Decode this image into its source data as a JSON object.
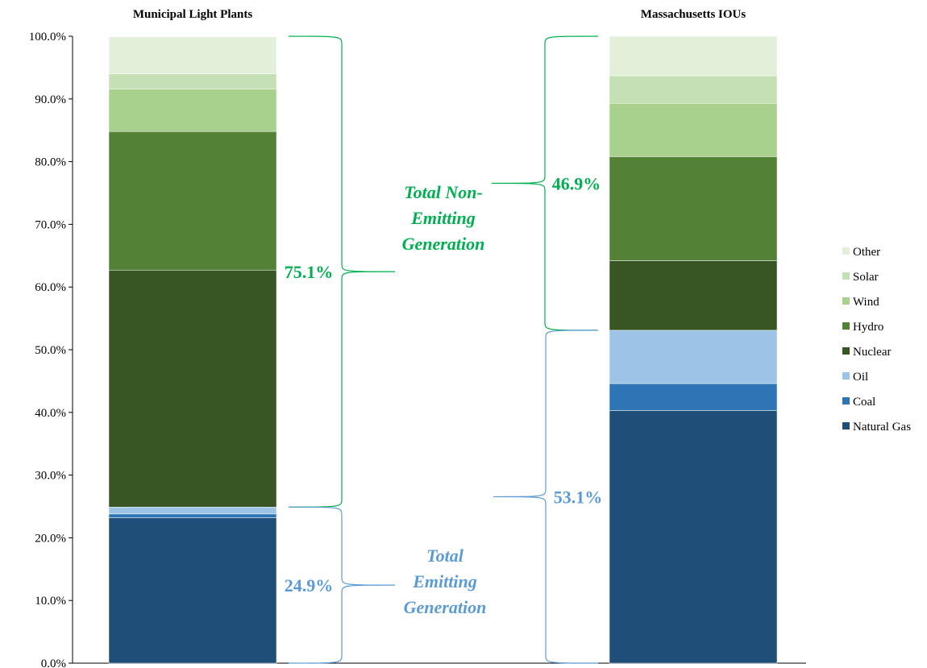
{
  "chart_data": {
    "type": "bar",
    "stacked": true,
    "categories": [
      "Municipal Light Plants",
      "Massachusetts IOUs"
    ],
    "series": [
      {
        "name": "Natural Gas",
        "color": "#1f4e79",
        "values": [
          23.2,
          40.3
        ]
      },
      {
        "name": "Coal",
        "color": "#2e75b6",
        "values": [
          0.6,
          4.3
        ]
      },
      {
        "name": "Oil",
        "color": "#9dc3e6",
        "values": [
          1.1,
          8.5
        ]
      },
      {
        "name": "Nuclear",
        "color": "#375623",
        "values": [
          37.8,
          11.1
        ]
      },
      {
        "name": "Hydro",
        "color": "#538135",
        "values": [
          22.1,
          16.6
        ]
      },
      {
        "name": "Wind",
        "color": "#a9d18e",
        "values": [
          6.8,
          8.5
        ]
      },
      {
        "name": "Solar",
        "color": "#c5e0b4",
        "values": [
          2.4,
          4.4
        ]
      },
      {
        "name": "Other",
        "color": "#e2f0d9",
        "values": [
          5.9,
          6.3
        ]
      }
    ],
    "ylim": [
      0,
      100
    ],
    "yticks": [
      "0.0%",
      "10.0%",
      "20.0%",
      "30.0%",
      "40.0%",
      "50.0%",
      "60.0%",
      "70.0%",
      "80.0%",
      "90.0%",
      "100.0%"
    ],
    "legend_position": "right",
    "grid": false,
    "annotations": {
      "non_emitting": {
        "label_lines": [
          "Total Non-",
          "Emitting",
          "Generation"
        ],
        "color": "#00b050",
        "values": [
          "75.1%",
          "46.9%"
        ]
      },
      "emitting": {
        "label_lines": [
          "Total",
          "Emitting",
          "Generation"
        ],
        "color": "#5b9bd5",
        "values": [
          "24.9%",
          "53.1%"
        ]
      }
    }
  }
}
